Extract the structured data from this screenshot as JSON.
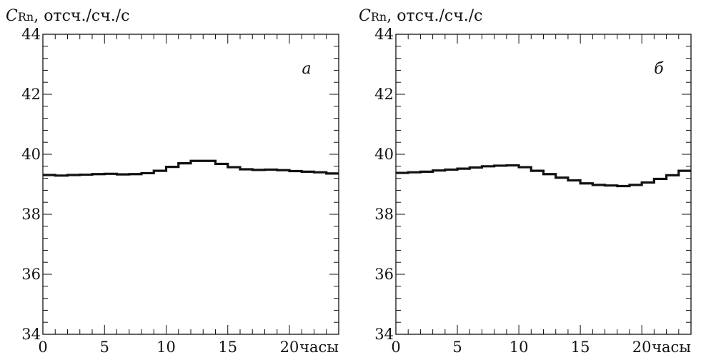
{
  "chart_data": [
    {
      "type": "line",
      "title": "",
      "panel_label": "a",
      "ylabel": {
        "symbol": "C",
        "subscript": "Rn",
        "rest": ", отсч./сч./с"
      },
      "xlabel": "часы",
      "xlim": [
        0,
        24
      ],
      "ylim": [
        34,
        44
      ],
      "xticks": [
        0,
        5,
        10,
        15,
        20
      ],
      "yticks": [
        34,
        36,
        38,
        40,
        42,
        44
      ],
      "step": true,
      "bin_width": 1,
      "grid": false,
      "series": [
        {
          "x": [
            0,
            1,
            2,
            3,
            4,
            5,
            6,
            7,
            8,
            9,
            10,
            11,
            12,
            13,
            14,
            15,
            16,
            17,
            18,
            19,
            20,
            21,
            22,
            23
          ],
          "values": [
            39.31,
            39.29,
            39.31,
            39.32,
            39.34,
            39.35,
            39.33,
            39.34,
            39.37,
            39.45,
            39.58,
            39.7,
            39.78,
            39.78,
            39.68,
            39.57,
            39.5,
            39.48,
            39.49,
            39.47,
            39.44,
            39.42,
            39.4,
            39.36
          ]
        }
      ]
    },
    {
      "type": "line",
      "title": "",
      "panel_label": "б",
      "ylabel": {
        "symbol": "C",
        "subscript": "Rn",
        "rest": ", отсч./сч./с"
      },
      "xlabel": "часы",
      "xlim": [
        0,
        24
      ],
      "ylim": [
        34,
        44
      ],
      "xticks": [
        0,
        5,
        10,
        15,
        20
      ],
      "yticks": [
        34,
        36,
        38,
        40,
        42,
        44
      ],
      "step": true,
      "bin_width": 1,
      "grid": false,
      "series": [
        {
          "x": [
            0,
            1,
            2,
            3,
            4,
            5,
            6,
            7,
            8,
            9,
            10,
            11,
            12,
            13,
            14,
            15,
            16,
            17,
            18,
            19,
            20,
            21,
            22,
            23
          ],
          "values": [
            39.38,
            39.4,
            39.42,
            39.46,
            39.49,
            39.52,
            39.56,
            39.6,
            39.62,
            39.63,
            39.57,
            39.45,
            39.34,
            39.22,
            39.13,
            39.03,
            38.98,
            38.96,
            38.94,
            38.98,
            39.06,
            39.18,
            39.3,
            39.45
          ]
        }
      ]
    }
  ]
}
